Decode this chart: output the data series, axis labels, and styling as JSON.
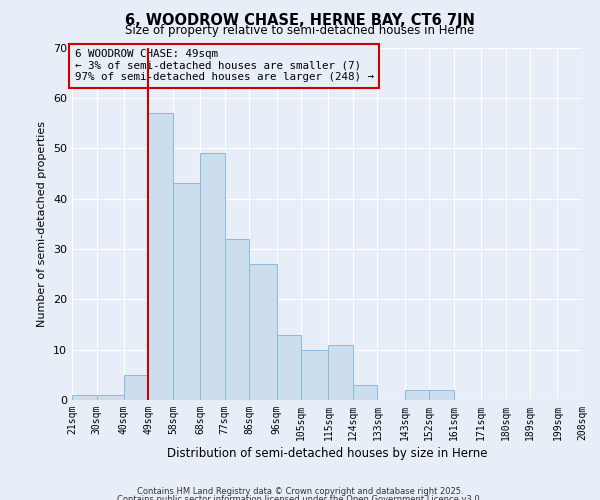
{
  "title": "6, WOODROW CHASE, HERNE BAY, CT6 7JN",
  "subtitle": "Size of property relative to semi-detached houses in Herne",
  "xlabel": "Distribution of semi-detached houses by size in Herne",
  "ylabel": "Number of semi-detached properties",
  "bar_lefts": [
    21,
    30,
    40,
    49,
    58,
    68,
    77,
    86,
    96,
    105,
    115,
    124,
    133,
    143,
    152,
    161,
    171,
    180,
    189,
    199
  ],
  "bar_widths": [
    9,
    10,
    9,
    9,
    10,
    9,
    9,
    10,
    9,
    10,
    9,
    9,
    10,
    9,
    9,
    10,
    9,
    9,
    10,
    9
  ],
  "counts": [
    1,
    1,
    5,
    57,
    43,
    49,
    32,
    27,
    13,
    10,
    11,
    3,
    0,
    2,
    2,
    0,
    0,
    0,
    0,
    0
  ],
  "bar_color": "#ccdded",
  "bar_edgecolor": "#88bbdd",
  "marker_x": 49,
  "marker_line_color": "#cc0000",
  "annotation_text": "6 WOODROW CHASE: 49sqm\n← 3% of semi-detached houses are smaller (7)\n97% of semi-detached houses are larger (248) →",
  "annotation_box_edgecolor": "#cc0000",
  "xlim": [
    21,
    208
  ],
  "ylim": [
    0,
    70
  ],
  "yticks": [
    0,
    10,
    20,
    30,
    40,
    50,
    60,
    70
  ],
  "footer1": "Contains HM Land Registry data © Crown copyright and database right 2025.",
  "footer2": "Contains public sector information licensed under the Open Government Licence v3.0.",
  "bg_color": "#e8eef8",
  "grid_color": "#ffffff",
  "tick_labels": [
    "21sqm",
    "30sqm",
    "40sqm",
    "49sqm",
    "58sqm",
    "68sqm",
    "77sqm",
    "86sqm",
    "96sqm",
    "105sqm",
    "115sqm",
    "124sqm",
    "133sqm",
    "143sqm",
    "152sqm",
    "161sqm",
    "171sqm",
    "180sqm",
    "189sqm",
    "199sqm",
    "208sqm"
  ],
  "xtick_positions": [
    21,
    30,
    40,
    49,
    58,
    68,
    77,
    86,
    96,
    105,
    115,
    124,
    133,
    143,
    152,
    161,
    171,
    180,
    189,
    199,
    208
  ]
}
